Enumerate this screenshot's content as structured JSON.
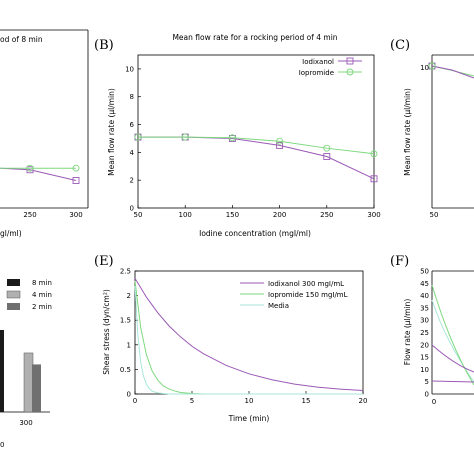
{
  "panels": {
    "A": {
      "label": "",
      "title_fragment": "od of 8 min",
      "xlabel_fragment": "gl/ml)",
      "ticks": [
        "250",
        "300"
      ]
    },
    "B": {
      "label": "(B)",
      "title": "Mean flow rate for a rocking period of 4 min",
      "ylabel": "Mean flow rate (μl/min)",
      "xlabel": "Iodine concentration (mgI/ml)"
    },
    "C": {
      "label": "(C)",
      "ylabel": "Mean flow rate (μl/min)",
      "ticks": [
        "10",
        "50"
      ]
    },
    "D": {
      "legend": [
        "8 min",
        "4 min",
        "2 min"
      ],
      "tick": "300",
      "tick0": "0"
    },
    "E": {
      "label": "(E)",
      "ylabel": "Shear stress (dyn/cm²)",
      "xlabel": "Time (min)"
    },
    "F": {
      "label": "(F)",
      "ylabel": "Flow rate (μl/min)",
      "xtick": "0",
      "yticks": [
        "50",
        "45",
        "40",
        "35",
        "30",
        "25",
        "20",
        "15",
        "10",
        "5",
        "0"
      ]
    }
  },
  "colors": {
    "iodixanol": "#9b59b6",
    "iopromide": "#7dd87d",
    "media": "#a8e6d8",
    "bar_dark": "#1a1a1a",
    "bar_mid": "#a0a0a0",
    "bar_gray": "#707070"
  },
  "chart_data": [
    {
      "id": "B",
      "type": "line",
      "title": "Mean flow rate for a rocking period of 4 min",
      "xlabel": "Iodine concentration (mgI/ml)",
      "ylabel": "Mean flow rate (μl/min)",
      "xlim": [
        50,
        300
      ],
      "ylim": [
        0,
        11
      ],
      "xticks": [
        50,
        100,
        150,
        200,
        250,
        300
      ],
      "yticks": [
        0,
        2,
        4,
        6,
        8,
        10
      ],
      "legend_position": "top-right",
      "series": [
        {
          "name": "Iodixanol",
          "x": [
            50,
            100,
            150,
            200,
            250,
            300
          ],
          "y": [
            5.1,
            5.1,
            5.0,
            4.5,
            3.7,
            2.1
          ]
        },
        {
          "name": "Iopromide",
          "x": [
            50,
            100,
            150,
            200,
            250,
            300
          ],
          "y": [
            5.1,
            5.1,
            5.05,
            4.8,
            4.3,
            3.9
          ]
        }
      ]
    },
    {
      "id": "E",
      "type": "line",
      "xlabel": "Time (min)",
      "ylabel": "Shear stress (dyn/cm²)",
      "xlim": [
        0,
        20
      ],
      "ylim": [
        0,
        2.5
      ],
      "xticks": [
        0,
        5,
        10,
        15,
        20
      ],
      "yticks": [
        0,
        0.5,
        1,
        1.5,
        2,
        2.5
      ],
      "legend_position": "top-right",
      "series": [
        {
          "name": "Iodixanol 300 mgI/mL",
          "x": [
            0,
            1,
            2,
            3,
            4,
            5,
            6,
            8,
            10,
            12,
            14,
            16,
            18,
            20
          ],
          "y": [
            2.35,
            1.97,
            1.65,
            1.38,
            1.16,
            0.97,
            0.82,
            0.58,
            0.41,
            0.29,
            0.2,
            0.14,
            0.1,
            0.07
          ]
        },
        {
          "name": "Iopromide 150 mgI/mL",
          "x": [
            0,
            0.5,
            1,
            1.5,
            2,
            2.5,
            3,
            3.5,
            4,
            5,
            6,
            8,
            10,
            20
          ],
          "y": [
            2.3,
            1.35,
            0.8,
            0.47,
            0.28,
            0.16,
            0.1,
            0.06,
            0.03,
            0.01,
            0,
            0,
            0,
            0
          ]
        },
        {
          "name": "Media",
          "x": [
            0,
            0.25,
            0.5,
            0.75,
            1,
            1.25,
            1.5,
            2,
            3,
            5,
            10,
            20
          ],
          "y": [
            2.2,
            1.2,
            0.65,
            0.36,
            0.2,
            0.11,
            0.06,
            0.02,
            0,
            0,
            0,
            0
          ]
        }
      ]
    },
    {
      "id": "A",
      "type": "line",
      "xticks": [
        250,
        300
      ],
      "series": [
        {
          "name": "Iodixanol",
          "x": [
            200,
            250,
            300
          ],
          "y": [
            2.6,
            2.5,
            1.8
          ]
        },
        {
          "name": "Iopromide",
          "x": [
            200,
            250,
            300
          ],
          "y": [
            2.6,
            2.6,
            2.6
          ]
        }
      ]
    },
    {
      "id": "D",
      "type": "bar",
      "categories": [
        "300"
      ],
      "series": [
        {
          "name": "8 min",
          "values": [
            1.0
          ]
        },
        {
          "name": "4 min",
          "values": [
            0.72
          ]
        },
        {
          "name": "2 min",
          "values": [
            0.58
          ]
        }
      ]
    }
  ]
}
